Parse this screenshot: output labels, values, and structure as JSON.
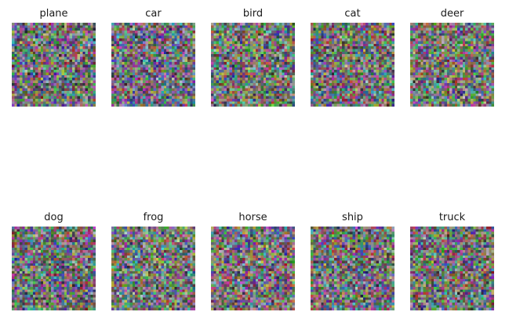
{
  "figure": {
    "panels": [
      {
        "label": "plane"
      },
      {
        "label": "car"
      },
      {
        "label": "bird"
      },
      {
        "label": "cat"
      },
      {
        "label": "deer"
      },
      {
        "label": "dog"
      },
      {
        "label": "frog"
      },
      {
        "label": "horse"
      },
      {
        "label": "ship"
      },
      {
        "label": "truck"
      }
    ]
  }
}
